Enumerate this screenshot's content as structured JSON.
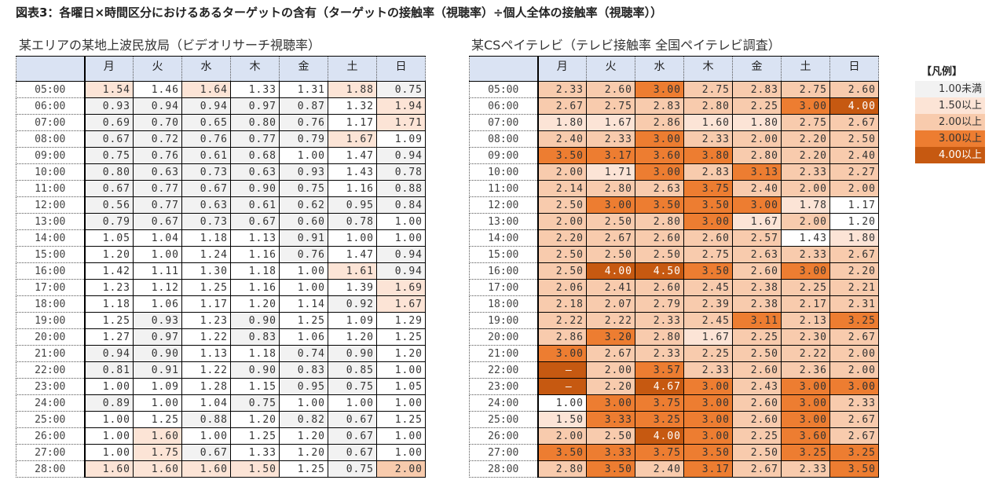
{
  "title": "図表3：各曜日×時間区分におけるあるターゲットの含有（ターゲットの接触率（視聴率）÷個人全体の接触率（視聴率））",
  "days": [
    "月",
    "火",
    "水",
    "木",
    "金",
    "土",
    "日"
  ],
  "times": [
    "05:00",
    "06:00",
    "07:00",
    "08:00",
    "09:00",
    "10:00",
    "11:00",
    "12:00",
    "13:00",
    "14:00",
    "15:00",
    "16:00",
    "17:00",
    "18:00",
    "19:00",
    "20:00",
    "21:00",
    "22:00",
    "23:00",
    "24:00",
    "25:00",
    "26:00",
    "27:00",
    "28:00"
  ],
  "left_table": {
    "subtitle": "某エリアの某地上波民放局（ビデオリサーチ視聴率）",
    "rows": [
      [
        "1.54",
        "1.46",
        "1.64",
        "1.33",
        "1.31",
        "1.88",
        "0.75"
      ],
      [
        "0.93",
        "0.94",
        "0.94",
        "0.97",
        "0.87",
        "1.32",
        "1.94"
      ],
      [
        "0.69",
        "0.70",
        "0.65",
        "0.80",
        "0.76",
        "1.17",
        "1.71"
      ],
      [
        "0.67",
        "0.72",
        "0.76",
        "0.77",
        "0.79",
        "1.67",
        "1.09"
      ],
      [
        "0.75",
        "0.76",
        "0.61",
        "0.68",
        "1.00",
        "1.47",
        "0.94"
      ],
      [
        "0.80",
        "0.63",
        "0.73",
        "0.63",
        "0.93",
        "1.43",
        "0.78"
      ],
      [
        "0.67",
        "0.77",
        "0.67",
        "0.90",
        "0.75",
        "1.16",
        "0.88"
      ],
      [
        "0.56",
        "0.77",
        "0.63",
        "0.61",
        "0.62",
        "0.95",
        "0.84"
      ],
      [
        "0.79",
        "0.67",
        "0.73",
        "0.67",
        "0.60",
        "0.78",
        "1.00"
      ],
      [
        "1.05",
        "1.04",
        "1.18",
        "1.13",
        "0.91",
        "1.00",
        "1.00"
      ],
      [
        "1.20",
        "1.00",
        "1.24",
        "1.16",
        "0.76",
        "1.47",
        "0.94"
      ],
      [
        "1.42",
        "1.11",
        "1.30",
        "1.18",
        "1.00",
        "1.61",
        "0.94"
      ],
      [
        "1.23",
        "1.12",
        "1.25",
        "1.16",
        "1.00",
        "1.39",
        "1.69"
      ],
      [
        "1.18",
        "1.06",
        "1.17",
        "1.20",
        "1.14",
        "0.92",
        "1.67"
      ],
      [
        "1.25",
        "0.93",
        "1.23",
        "0.90",
        "1.25",
        "1.09",
        "1.29"
      ],
      [
        "1.27",
        "0.97",
        "1.22",
        "0.83",
        "1.06",
        "1.20",
        "1.25"
      ],
      [
        "0.94",
        "0.90",
        "1.13",
        "1.18",
        "0.74",
        "0.90",
        "1.20"
      ],
      [
        "0.81",
        "0.91",
        "1.22",
        "0.90",
        "0.83",
        "0.85",
        "1.00"
      ],
      [
        "1.00",
        "1.09",
        "1.28",
        "1.15",
        "0.95",
        "0.75",
        "1.05"
      ],
      [
        "0.89",
        "1.00",
        "1.04",
        "0.75",
        "1.00",
        "1.00",
        "1.00"
      ],
      [
        "1.00",
        "1.25",
        "0.88",
        "1.20",
        "0.82",
        "0.67",
        "1.25"
      ],
      [
        "1.00",
        "1.60",
        "1.00",
        "1.25",
        "1.20",
        "0.67",
        "1.00"
      ],
      [
        "1.00",
        "1.75",
        "0.67",
        "1.33",
        "1.20",
        "0.67",
        "1.00"
      ],
      [
        "1.60",
        "1.60",
        "1.60",
        "1.50",
        "1.25",
        "0.75",
        "2.00"
      ]
    ]
  },
  "right_table": {
    "subtitle": "某CSペイテレビ（テレビ接触率 全国ペイテレビ調査）",
    "rows": [
      [
        "2.33",
        "2.60",
        "3.00",
        "2.75",
        "2.83",
        "2.75",
        "2.60"
      ],
      [
        "2.67",
        "2.75",
        "2.83",
        "2.80",
        "2.25",
        "3.00",
        "4.00"
      ],
      [
        "1.80",
        "1.67",
        "2.86",
        "1.60",
        "1.80",
        "2.75",
        "2.67"
      ],
      [
        "2.40",
        "2.33",
        "3.00",
        "2.33",
        "2.00",
        "2.20",
        "2.50"
      ],
      [
        "3.50",
        "3.17",
        "3.60",
        "3.80",
        "2.80",
        "2.20",
        "2.40"
      ],
      [
        "2.00",
        "1.71",
        "3.00",
        "2.83",
        "3.13",
        "2.33",
        "2.27"
      ],
      [
        "2.14",
        "2.80",
        "2.63",
        "3.75",
        "2.40",
        "2.00",
        "2.00"
      ],
      [
        "2.50",
        "3.00",
        "3.50",
        "3.50",
        "3.00",
        "1.78",
        "1.17"
      ],
      [
        "2.00",
        "2.50",
        "2.80",
        "3.00",
        "1.67",
        "2.00",
        "1.20"
      ],
      [
        "2.20",
        "2.67",
        "2.60",
        "2.60",
        "2.57",
        "1.43",
        "1.80"
      ],
      [
        "2.50",
        "2.50",
        "2.50",
        "2.75",
        "2.63",
        "2.33",
        "2.67"
      ],
      [
        "2.50",
        "4.00",
        "4.50",
        "3.50",
        "2.60",
        "3.00",
        "2.20"
      ],
      [
        "2.06",
        "2.41",
        "2.60",
        "2.45",
        "2.38",
        "2.25",
        "2.21"
      ],
      [
        "2.18",
        "2.07",
        "2.79",
        "2.39",
        "2.38",
        "2.17",
        "2.31"
      ],
      [
        "2.22",
        "2.22",
        "2.33",
        "2.45",
        "3.11",
        "2.13",
        "3.25"
      ],
      [
        "2.86",
        "3.20",
        "2.80",
        "1.67",
        "2.25",
        "2.30",
        "2.67"
      ],
      [
        "3.00",
        "2.67",
        "2.33",
        "2.25",
        "2.50",
        "2.22",
        "2.00"
      ],
      [
        "—",
        "2.00",
        "3.57",
        "2.33",
        "2.60",
        "2.36",
        "2.00"
      ],
      [
        "—",
        "2.20",
        "4.67",
        "3.00",
        "2.43",
        "3.00",
        "3.00"
      ],
      [
        "1.00",
        "3.00",
        "3.75",
        "3.00",
        "2.60",
        "3.00",
        "2.33"
      ],
      [
        "1.50",
        "3.33",
        "3.25",
        "3.00",
        "2.60",
        "3.00",
        "2.67"
      ],
      [
        "2.00",
        "2.50",
        "4.00",
        "3.00",
        "2.25",
        "3.60",
        "2.67"
      ],
      [
        "3.50",
        "3.33",
        "3.75",
        "3.50",
        "2.50",
        "3.25",
        "3.25"
      ],
      [
        "2.80",
        "3.50",
        "2.40",
        "3.17",
        "2.67",
        "2.33",
        "3.50"
      ]
    ]
  },
  "legend": {
    "title": "【凡例】",
    "items": [
      {
        "label": "1.00未満",
        "color": "#f2f2f2",
        "text": "#333333"
      },
      {
        "label": "1.50以上",
        "color": "#fce4d6",
        "text": "#333333"
      },
      {
        "label": "2.00以上",
        "color": "#f8cbad",
        "text": "#333333"
      },
      {
        "label": "3.00以上",
        "color": "#ed7d31",
        "text": "#333333"
      },
      {
        "label": "4.00以上",
        "color": "#c65911",
        "text": "#ffffff"
      }
    ]
  }
}
